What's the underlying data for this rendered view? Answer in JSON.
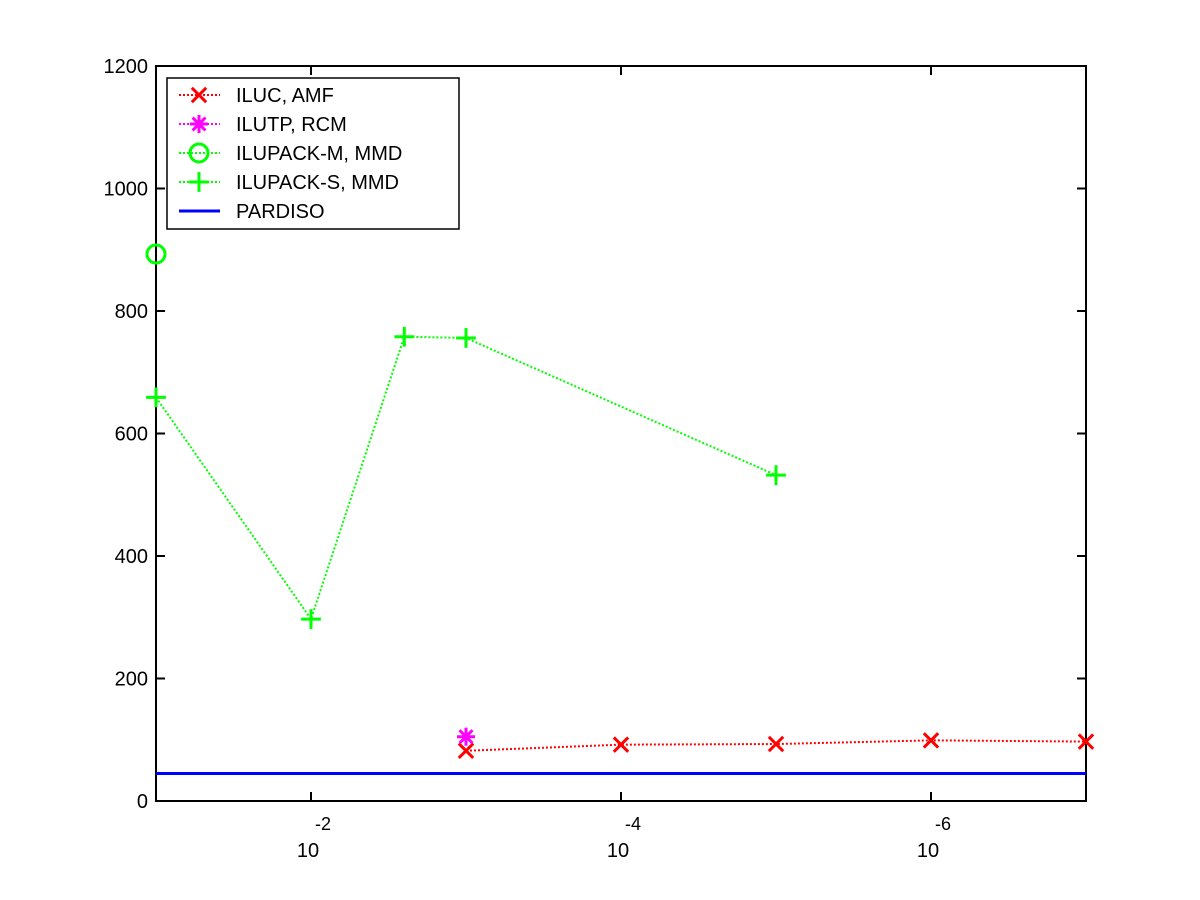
{
  "chart_data": {
    "type": "line",
    "title": "",
    "xlabel": "",
    "ylabel": "",
    "x_scale": "log",
    "x_reversed": true,
    "xlim": [
      0.1,
      1e-07
    ],
    "ylim": [
      0,
      1200
    ],
    "x_ticks": [
      {
        "x": 0.01,
        "base": "10",
        "exponent": "-2"
      },
      {
        "x": 0.0001,
        "base": "10",
        "exponent": "-4"
      },
      {
        "x": 1e-06,
        "base": "10",
        "exponent": "-6"
      }
    ],
    "y_ticks": [
      {
        "value": 0,
        "label": "0"
      },
      {
        "value": 200,
        "label": "200"
      },
      {
        "value": 400,
        "label": "400"
      },
      {
        "value": 600,
        "label": "600"
      },
      {
        "value": 800,
        "label": "800"
      },
      {
        "value": 1000,
        "label": "1000"
      },
      {
        "value": 1200,
        "label": "1200"
      }
    ],
    "grid": false,
    "legend_position": "top-left",
    "series": [
      {
        "name": "ILUC, AMF",
        "color": "#ff0000",
        "marker": "x",
        "line": "dotted",
        "x": [
          0.001,
          0.0001,
          1e-05,
          1e-06,
          1e-07
        ],
        "y": [
          82,
          92,
          93,
          99,
          97
        ]
      },
      {
        "name": "ILUTP, RCM",
        "color": "#ff00ff",
        "marker": "asterisk",
        "line": "dotted",
        "x": [
          0.001
        ],
        "y": [
          105
        ]
      },
      {
        "name": "ILUPACK-M, MMD",
        "color": "#00ff00",
        "marker": "circle",
        "line": "dotted",
        "x": [
          0.1
        ],
        "y": [
          893
        ]
      },
      {
        "name": "ILUPACK-S, MMD",
        "color": "#00ff00",
        "marker": "plus",
        "line": "dotted",
        "x": [
          0.1,
          0.01,
          0.0025,
          0.001,
          1e-05
        ],
        "y": [
          659,
          297,
          758,
          756,
          532
        ]
      },
      {
        "name": "PARDISO",
        "color": "#0000ff",
        "marker": "none",
        "line": "solid",
        "x": [
          0.1,
          1e-07
        ],
        "y": [
          45,
          45
        ]
      }
    ]
  }
}
